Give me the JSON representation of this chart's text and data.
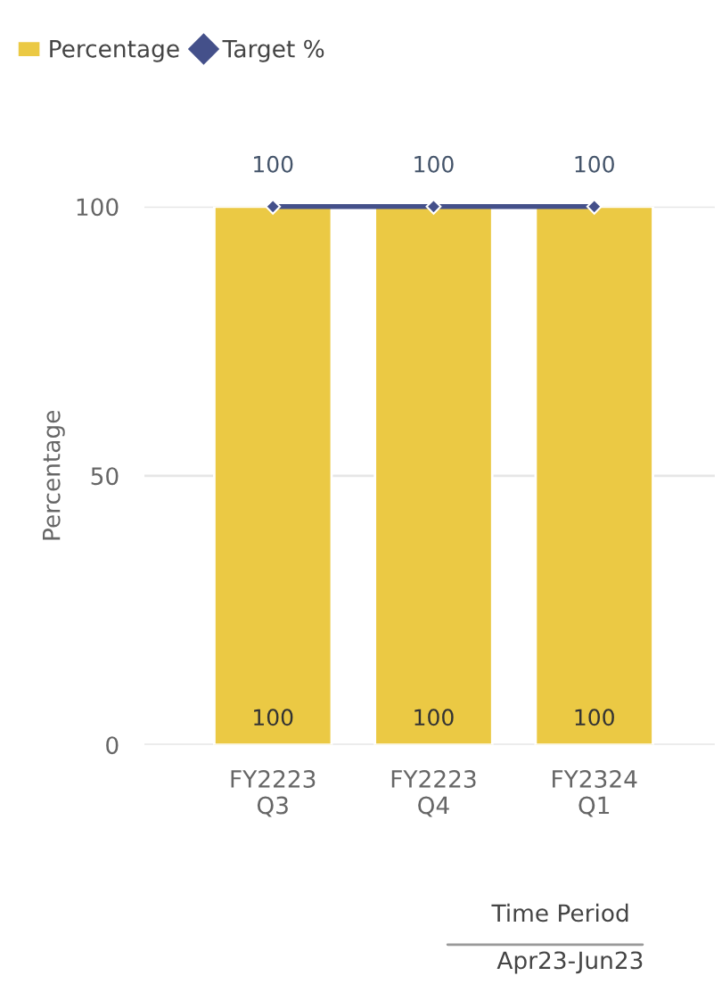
{
  "chart_data": {
    "type": "bar",
    "categories": [
      "FY2223\nQ3",
      "FY2223\nQ4",
      "FY2324\nQ1"
    ],
    "series": [
      {
        "name": "Percentage",
        "color": "#ebc944",
        "values": [
          100,
          100,
          100
        ],
        "value_labels": [
          "100",
          "100",
          "100"
        ]
      },
      {
        "name": "Target %",
        "type": "line",
        "color": "#44508a",
        "values": [
          100,
          100,
          100
        ],
        "value_labels": [
          "100",
          "100",
          "100"
        ],
        "marker": "diamond",
        "line_style": "solid"
      }
    ],
    "ylabel": "Percentage",
    "xlabel": "Time Period",
    "annotations": [
      "Apr23-Jun23"
    ],
    "ylim": [
      0,
      100
    ],
    "yticks": [
      0,
      50,
      100
    ],
    "grid": "y",
    "legend": "top left"
  }
}
